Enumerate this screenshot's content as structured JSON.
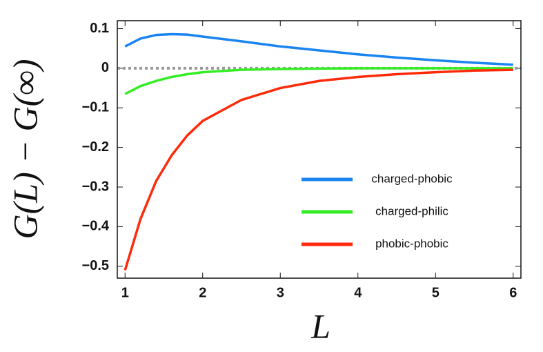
{
  "chart_data": {
    "type": "line",
    "x_label": "L",
    "y_label": "G(L) − G(∞)",
    "x": [
      1,
      1.2,
      1.4,
      1.6,
      1.8,
      2,
      2.5,
      3,
      3.5,
      4,
      4.5,
      5,
      5.5,
      6
    ],
    "series": [
      {
        "name": "charged-phobic",
        "color": "#1a84f0",
        "values": [
          0.055,
          0.075,
          0.084,
          0.086,
          0.085,
          0.08,
          0.068,
          0.055,
          0.045,
          0.035,
          0.027,
          0.02,
          0.014,
          0.009
        ]
      },
      {
        "name": "charged-philic",
        "color": "#33ee22",
        "values": [
          -0.065,
          -0.045,
          -0.032,
          -0.022,
          -0.015,
          -0.01,
          -0.004,
          -0.002,
          -0.001,
          0,
          0,
          0,
          0,
          0
        ]
      },
      {
        "name": "phobic-phobic",
        "color": "#ff2a0a",
        "values": [
          -0.51,
          -0.38,
          -0.285,
          -0.22,
          -0.17,
          -0.133,
          -0.08,
          -0.05,
          -0.032,
          -0.022,
          -0.015,
          -0.01,
          -0.006,
          -0.004
        ]
      }
    ],
    "xlim": [
      0.9,
      6.1
    ],
    "ylim": [
      -0.53,
      0.12
    ],
    "xticks": [
      1,
      2,
      3,
      4,
      5,
      6
    ],
    "yticks": [
      0.1,
      0,
      {
        "value": -0.1,
        "label": "−0.1"
      },
      {
        "value": -0.2,
        "label": "−0.2"
      },
      {
        "value": -0.3,
        "label": "−0.3"
      },
      {
        "value": -0.4,
        "label": "−0.4"
      },
      {
        "value": -0.5,
        "label": "−0.5"
      }
    ],
    "zero_line": true,
    "legend_position": "center-right"
  }
}
